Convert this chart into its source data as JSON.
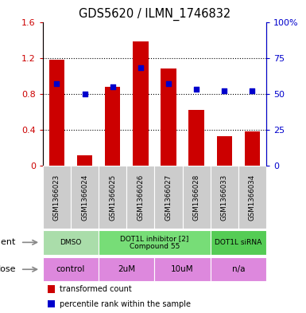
{
  "title": "GDS5620 / ILMN_1746832",
  "samples": [
    "GSM1366023",
    "GSM1366024",
    "GSM1366025",
    "GSM1366026",
    "GSM1366027",
    "GSM1366028",
    "GSM1366033",
    "GSM1366034"
  ],
  "bar_values": [
    1.18,
    0.12,
    0.88,
    1.38,
    1.08,
    0.62,
    0.33,
    0.38
  ],
  "dot_values_right": [
    57,
    50,
    55,
    68,
    57,
    53,
    52,
    52
  ],
  "bar_color": "#cc0000",
  "dot_color": "#0000cc",
  "ylim_left": [
    0,
    1.6
  ],
  "ylim_right": [
    0,
    100
  ],
  "yticks_left": [
    0,
    0.4,
    0.8,
    1.2,
    1.6
  ],
  "ytick_labels_left": [
    "0",
    "0.4",
    "0.8",
    "1.2",
    "1.6"
  ],
  "yticks_right": [
    0,
    25,
    50,
    75,
    100
  ],
  "ytick_labels_right": [
    "0",
    "25",
    "50",
    "75",
    "100%"
  ],
  "agent_groups": [
    {
      "label": "DMSO",
      "span": [
        0,
        2
      ],
      "color": "#aaddaa"
    },
    {
      "label": "DOT1L inhibitor [2]\nCompound 55",
      "span": [
        2,
        6
      ],
      "color": "#77dd77"
    },
    {
      "label": "DOT1L siRNA",
      "span": [
        6,
        8
      ],
      "color": "#55cc55"
    }
  ],
  "dose_groups": [
    {
      "label": "control",
      "span": [
        0,
        2
      ],
      "color": "#dd88dd"
    },
    {
      "label": "2uM",
      "span": [
        2,
        4
      ],
      "color": "#dd88dd"
    },
    {
      "label": "10uM",
      "span": [
        4,
        6
      ],
      "color": "#dd88dd"
    },
    {
      "label": "n/a",
      "span": [
        6,
        8
      ],
      "color": "#dd88dd"
    }
  ],
  "legend_items": [
    {
      "label": "transformed count",
      "color": "#cc0000"
    },
    {
      "label": "percentile rank within the sample",
      "color": "#0000cc"
    }
  ],
  "agent_label": "agent",
  "dose_label": "dose",
  "bg_color": "#ffffff",
  "sample_area_color": "#cccccc"
}
